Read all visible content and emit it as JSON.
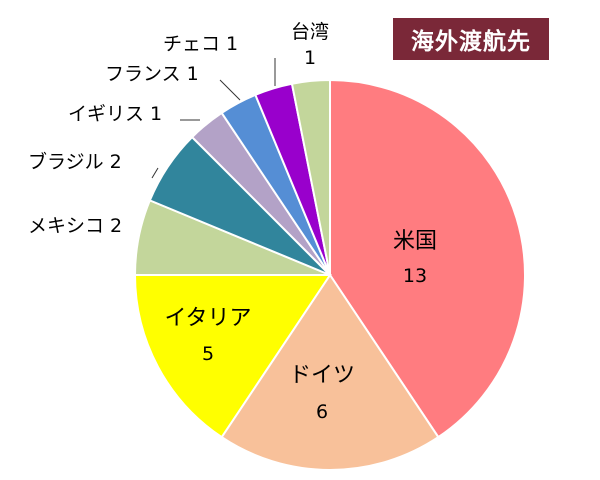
{
  "chart_data": {
    "type": "pie",
    "title": "海外渡航先",
    "start": "12 o'clock",
    "direction": "clockwise",
    "slices": [
      {
        "label": "米国",
        "value": 13,
        "color": "#ff7c80",
        "label_pos": "inside"
      },
      {
        "label": "ドイツ",
        "value": 6,
        "color": "#f8c19a",
        "label_pos": "inside"
      },
      {
        "label": "イタリア",
        "value": 5,
        "color": "#ffff00",
        "label_pos": "inside"
      },
      {
        "label": "メキシコ",
        "value": 2,
        "color": "#c3d69b",
        "label_pos": "outside"
      },
      {
        "label": "ブラジル",
        "value": 2,
        "color": "#31859c",
        "label_pos": "outside"
      },
      {
        "label": "イギリス",
        "value": 1,
        "color": "#b3a2c7",
        "label_pos": "outside"
      },
      {
        "label": "フランス",
        "value": 1,
        "color": "#558ed5",
        "label_pos": "outside"
      },
      {
        "label": "チェコ",
        "value": 1,
        "color": "#9900cc",
        "label_pos": "outside"
      },
      {
        "label": "台湾",
        "value": 1,
        "color": "#c3d69b",
        "label_pos": "outside"
      }
    ]
  }
}
